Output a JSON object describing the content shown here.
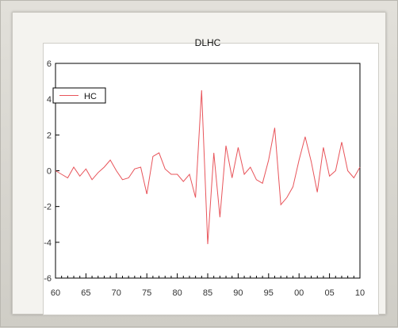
{
  "chart_data": {
    "type": "line",
    "title": "DLHC",
    "xlabel": "",
    "ylabel": "",
    "xlim": [
      1960,
      2010
    ],
    "ylim": [
      -6,
      6
    ],
    "xticks": [
      1960,
      1965,
      1970,
      1975,
      1980,
      1985,
      1990,
      1995,
      2000,
      2005,
      2010
    ],
    "xtick_labels": [
      "60",
      "65",
      "70",
      "75",
      "80",
      "85",
      "90",
      "95",
      "00",
      "05",
      "10"
    ],
    "yticks": [
      -6,
      -4,
      -2,
      0,
      2,
      4,
      6
    ],
    "ytick_labels": [
      "-6",
      "-4",
      "-2",
      "0",
      "2",
      "4",
      "6"
    ],
    "grid": false,
    "legend_position": "top-left",
    "series": [
      {
        "name": "HC",
        "color": "#e8545a",
        "x": [
          1960,
          1961,
          1962,
          1963,
          1964,
          1965,
          1966,
          1967,
          1968,
          1969,
          1970,
          1971,
          1972,
          1973,
          1974,
          1975,
          1976,
          1977,
          1978,
          1979,
          1980,
          1981,
          1982,
          1983,
          1984,
          1985,
          1986,
          1987,
          1988,
          1989,
          1990,
          1991,
          1992,
          1993,
          1994,
          1995,
          1996,
          1997,
          1998,
          1999,
          2000,
          2001,
          2002,
          2003,
          2004,
          2005,
          2006,
          2007,
          2008,
          2009,
          2010
        ],
        "values": [
          0.0,
          -0.2,
          -0.4,
          0.2,
          -0.3,
          0.1,
          -0.5,
          -0.1,
          0.2,
          0.6,
          0.0,
          -0.5,
          -0.4,
          0.1,
          0.2,
          -1.3,
          0.8,
          1.0,
          0.1,
          -0.2,
          -0.2,
          -0.6,
          -0.2,
          -1.5,
          4.5,
          -4.1,
          1.0,
          -2.6,
          1.4,
          -0.4,
          1.3,
          -0.2,
          0.2,
          -0.5,
          -0.7,
          0.6,
          2.4,
          -1.9,
          -1.5,
          -0.9,
          0.6,
          1.9,
          0.5,
          -1.2,
          1.3,
          -0.3,
          0.0,
          1.6,
          0.0,
          -0.4,
          0.2
        ]
      }
    ]
  }
}
